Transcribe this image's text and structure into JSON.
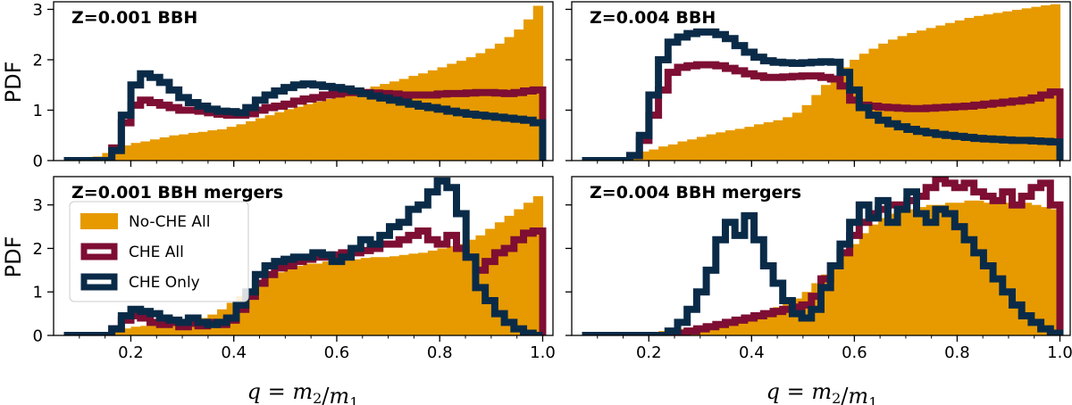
{
  "figure": {
    "xlabel_parts": [
      {
        "t": "q",
        "style": "math"
      },
      {
        "t": " = ",
        "style": "up"
      },
      {
        "t": "m",
        "style": "math"
      },
      {
        "t": "2",
        "style": "sub"
      },
      {
        "t": "/",
        "style": "up"
      },
      {
        "t": "m",
        "style": "math"
      },
      {
        "t": "1",
        "style": "sub"
      }
    ],
    "ylabel": "PDF",
    "colors": {
      "nocheall": "#E69A00",
      "cheall": "#7E0E33",
      "cheonly": "#0A2B48"
    },
    "legend": [
      {
        "key": "nocheall",
        "label": "No-CHE All",
        "kind": "fill"
      },
      {
        "key": "cheall",
        "label": "CHE All",
        "kind": "step"
      },
      {
        "key": "cheonly",
        "label": "CHE Only",
        "kind": "step"
      }
    ]
  },
  "chart_data": [
    {
      "type": "histogram",
      "title": "Z=0.001 BBH",
      "bins": [
        0.07,
        1.0,
        50
      ],
      "xlim": [
        0.05,
        1.02
      ],
      "ylim": [
        0,
        3.15
      ],
      "xticks": [
        "0.2",
        "0.4",
        "0.6",
        "0.8",
        "1.0"
      ],
      "xtick_values": [
        0.2,
        0.4,
        0.6,
        0.8,
        1.0
      ],
      "yticks": [
        "0",
        "1",
        "2",
        "3"
      ],
      "ytick_values": [
        0,
        1,
        2,
        3
      ],
      "series": [
        {
          "key": "nocheall",
          "name": "No-CHE All",
          "style": "fill",
          "values": [
            0.02,
            0.03,
            0.05,
            0.08,
            0.15,
            0.25,
            0.3,
            0.35,
            0.38,
            0.42,
            0.46,
            0.5,
            0.52,
            0.55,
            0.57,
            0.6,
            0.62,
            0.67,
            0.72,
            0.78,
            0.84,
            0.9,
            0.96,
            1.02,
            1.07,
            1.12,
            1.17,
            1.22,
            1.27,
            1.32,
            1.37,
            1.42,
            1.47,
            1.52,
            1.57,
            1.62,
            1.68,
            1.73,
            1.79,
            1.85,
            1.92,
            1.98,
            2.05,
            2.13,
            2.22,
            2.32,
            2.45,
            2.6,
            2.8,
            3.07
          ]
        },
        {
          "key": "cheall",
          "name": "CHE All",
          "style": "step",
          "values": [
            0.0,
            0.0,
            0.0,
            0.0,
            0.0,
            0.25,
            0.75,
            1.1,
            1.2,
            1.15,
            1.1,
            1.05,
            1.0,
            1.0,
            0.98,
            0.95,
            0.92,
            0.9,
            0.9,
            0.93,
            1.0,
            1.05,
            1.08,
            1.12,
            1.18,
            1.22,
            1.25,
            1.3,
            1.32,
            1.35,
            1.35,
            1.35,
            1.34,
            1.33,
            1.32,
            1.3,
            1.3,
            1.3,
            1.3,
            1.32,
            1.33,
            1.33,
            1.34,
            1.35,
            1.35,
            1.34,
            1.33,
            1.35,
            1.38,
            1.4
          ]
        },
        {
          "key": "cheonly",
          "name": "CHE Only",
          "style": "step",
          "values": [
            0.0,
            0.0,
            0.0,
            0.0,
            0.0,
            0.2,
            0.9,
            1.5,
            1.72,
            1.65,
            1.55,
            1.4,
            1.25,
            1.15,
            1.08,
            1.02,
            0.98,
            0.97,
            0.95,
            1.05,
            1.2,
            1.3,
            1.38,
            1.45,
            1.5,
            1.52,
            1.5,
            1.47,
            1.45,
            1.42,
            1.38,
            1.33,
            1.28,
            1.24,
            1.2,
            1.16,
            1.12,
            1.08,
            1.05,
            1.02,
            0.98,
            0.95,
            0.92,
            0.9,
            0.88,
            0.86,
            0.84,
            0.82,
            0.8,
            0.75
          ]
        }
      ]
    },
    {
      "type": "histogram",
      "title": "Z=0.004 BBH",
      "bins": [
        0.07,
        1.0,
        50
      ],
      "xlim": [
        0.05,
        1.02
      ],
      "ylim": [
        0,
        3.15
      ],
      "xticks": [
        "0.2",
        "0.4",
        "0.6",
        "0.8",
        "1.0"
      ],
      "xtick_values": [
        0.2,
        0.4,
        0.6,
        0.8,
        1.0
      ],
      "yticks": [
        "0",
        "1",
        "2",
        "3"
      ],
      "ytick_values": [
        0,
        1,
        2,
        3
      ],
      "series": [
        {
          "key": "nocheall",
          "name": "No-CHE All",
          "style": "fill",
          "values": [
            0.0,
            0.0,
            0.0,
            0.03,
            0.07,
            0.12,
            0.18,
            0.22,
            0.28,
            0.32,
            0.38,
            0.42,
            0.47,
            0.52,
            0.56,
            0.6,
            0.63,
            0.67,
            0.72,
            0.76,
            0.8,
            0.86,
            0.95,
            1.1,
            1.3,
            1.5,
            1.68,
            1.85,
            2.0,
            2.12,
            2.22,
            2.32,
            2.4,
            2.47,
            2.53,
            2.58,
            2.63,
            2.68,
            2.73,
            2.78,
            2.83,
            2.87,
            2.9,
            2.93,
            2.96,
            2.99,
            3.02,
            3.05,
            3.08,
            3.1
          ]
        },
        {
          "key": "cheall",
          "name": "CHE All",
          "style": "step",
          "values": [
            0.0,
            0.0,
            0.0,
            0.0,
            0.0,
            0.1,
            0.4,
            0.9,
            1.4,
            1.75,
            1.85,
            1.88,
            1.9,
            1.9,
            1.88,
            1.83,
            1.78,
            1.72,
            1.68,
            1.65,
            1.65,
            1.66,
            1.67,
            1.68,
            1.68,
            1.65,
            1.62,
            1.48,
            1.2,
            1.1,
            1.08,
            1.06,
            1.05,
            1.04,
            1.03,
            1.03,
            1.04,
            1.05,
            1.06,
            1.07,
            1.08,
            1.1,
            1.12,
            1.14,
            1.16,
            1.18,
            1.2,
            1.24,
            1.3,
            1.36
          ]
        },
        {
          "key": "cheonly",
          "name": "CHE Only",
          "style": "step",
          "values": [
            0.0,
            0.0,
            0.0,
            0.0,
            0.0,
            0.1,
            0.5,
            1.3,
            2.0,
            2.35,
            2.45,
            2.52,
            2.55,
            2.55,
            2.5,
            2.42,
            2.28,
            2.15,
            2.05,
            1.98,
            1.95,
            1.94,
            1.93,
            1.94,
            1.95,
            1.96,
            1.95,
            1.75,
            1.4,
            1.05,
            0.9,
            0.8,
            0.73,
            0.67,
            0.62,
            0.58,
            0.55,
            0.52,
            0.5,
            0.48,
            0.46,
            0.44,
            0.43,
            0.42,
            0.41,
            0.4,
            0.4,
            0.39,
            0.38,
            0.37
          ]
        }
      ]
    },
    {
      "type": "histogram",
      "title": "Z=0.001 BBH mergers",
      "bins": [
        0.07,
        1.0,
        50
      ],
      "xlim": [
        0.05,
        1.02
      ],
      "ylim": [
        0,
        3.65
      ],
      "xticks": [
        "0.2",
        "0.4",
        "0.6",
        "0.8",
        "1.0"
      ],
      "xtick_values": [
        0.2,
        0.4,
        0.6,
        0.8,
        1.0
      ],
      "yticks": [
        "0",
        "1",
        "2",
        "3"
      ],
      "ytick_values": [
        0,
        1,
        2,
        3
      ],
      "series": [
        {
          "key": "nocheall",
          "name": "No-CHE All",
          "style": "fill",
          "values": [
            0.0,
            0.0,
            0.02,
            0.05,
            0.08,
            0.12,
            0.16,
            0.2,
            0.22,
            0.25,
            0.28,
            0.3,
            0.32,
            0.35,
            0.4,
            0.48,
            0.6,
            0.75,
            0.9,
            1.05,
            1.2,
            1.35,
            1.45,
            1.55,
            1.6,
            1.65,
            1.65,
            1.7,
            1.7,
            1.72,
            1.75,
            1.78,
            1.8,
            1.8,
            1.82,
            1.85,
            1.88,
            1.9,
            1.95,
            2.0,
            2.05,
            2.1,
            2.2,
            2.3,
            2.45,
            2.6,
            2.75,
            2.9,
            3.05,
            3.2
          ]
        },
        {
          "key": "cheall",
          "name": "CHE All",
          "style": "step",
          "values": [
            0.0,
            0.0,
            0.0,
            0.0,
            0.0,
            0.15,
            0.35,
            0.45,
            0.4,
            0.3,
            0.25,
            0.3,
            0.2,
            0.28,
            0.22,
            0.3,
            0.25,
            0.35,
            0.6,
            0.9,
            1.2,
            1.4,
            1.55,
            1.6,
            1.7,
            1.75,
            1.8,
            1.8,
            1.85,
            1.9,
            1.9,
            1.95,
            2.0,
            2.1,
            2.1,
            2.2,
            2.3,
            2.4,
            2.2,
            2.1,
            2.3,
            2.0,
            1.8,
            1.5,
            1.7,
            1.9,
            2.0,
            2.2,
            2.35,
            2.4
          ]
        },
        {
          "key": "cheonly",
          "name": "CHE Only",
          "style": "step",
          "values": [
            0.0,
            0.0,
            0.0,
            0.0,
            0.0,
            0.15,
            0.45,
            0.6,
            0.55,
            0.5,
            0.4,
            0.35,
            0.3,
            0.4,
            0.3,
            0.25,
            0.3,
            0.4,
            0.7,
            1.0,
            1.4,
            1.6,
            1.7,
            1.75,
            1.8,
            1.8,
            1.9,
            1.85,
            1.7,
            1.8,
            2.0,
            2.2,
            2.1,
            2.3,
            2.5,
            2.6,
            2.9,
            3.0,
            3.3,
            3.55,
            3.4,
            2.8,
            1.8,
            1.1,
            0.8,
            0.5,
            0.3,
            0.15,
            0.05,
            0.0
          ]
        }
      ]
    },
    {
      "type": "histogram",
      "title": "Z=0.004 BBH mergers",
      "bins": [
        0.07,
        1.0,
        50
      ],
      "xlim": [
        0.05,
        1.02
      ],
      "ylim": [
        0,
        3.65
      ],
      "xticks": [
        "0.2",
        "0.4",
        "0.6",
        "0.8",
        "1.0"
      ],
      "xtick_values": [
        0.2,
        0.4,
        0.6,
        0.8,
        1.0
      ],
      "yticks": [
        "0",
        "1",
        "2",
        "3"
      ],
      "ytick_values": [
        0,
        1,
        2,
        3
      ],
      "series": [
        {
          "key": "nocheall",
          "name": "No-CHE All",
          "style": "fill",
          "values": [
            0.0,
            0.0,
            0.0,
            0.0,
            0.02,
            0.04,
            0.06,
            0.08,
            0.1,
            0.12,
            0.15,
            0.18,
            0.2,
            0.22,
            0.25,
            0.3,
            0.35,
            0.4,
            0.45,
            0.55,
            0.65,
            0.75,
            0.85,
            1.0,
            1.2,
            1.4,
            1.6,
            1.85,
            2.1,
            2.35,
            2.55,
            2.7,
            2.8,
            2.85,
            2.9,
            2.95,
            3.0,
            3.0,
            3.05,
            3.05,
            3.1,
            3.1,
            3.05,
            3.1,
            3.05,
            3.0,
            3.05,
            3.0,
            2.95,
            2.9
          ]
        },
        {
          "key": "cheall",
          "name": "CHE All",
          "style": "step",
          "values": [
            0.0,
            0.0,
            0.0,
            0.0,
            0.0,
            0.0,
            0.0,
            0.0,
            0.0,
            0.0,
            0.05,
            0.1,
            0.15,
            0.2,
            0.25,
            0.3,
            0.35,
            0.4,
            0.45,
            0.5,
            0.55,
            0.6,
            0.65,
            0.7,
            0.9,
            1.3,
            1.6,
            1.9,
            2.3,
            2.6,
            2.8,
            2.9,
            3.0,
            3.0,
            3.1,
            3.2,
            3.4,
            3.6,
            3.5,
            3.4,
            3.5,
            3.3,
            3.2,
            3.1,
            3.3,
            3.0,
            3.2,
            3.4,
            3.5,
            3.0
          ]
        },
        {
          "key": "cheonly",
          "name": "CHE Only",
          "style": "step",
          "values": [
            0.0,
            0.0,
            0.0,
            0.0,
            0.0,
            0.0,
            0.0,
            0.0,
            0.0,
            0.1,
            0.3,
            0.6,
            1.0,
            1.5,
            2.2,
            2.6,
            2.3,
            2.75,
            2.2,
            1.6,
            1.2,
            0.8,
            0.5,
            0.4,
            0.6,
            1.1,
            1.6,
            2.1,
            2.6,
            3.0,
            2.7,
            3.1,
            2.6,
            2.9,
            3.3,
            2.8,
            2.6,
            2.9,
            2.8,
            2.5,
            2.2,
            1.9,
            1.6,
            1.3,
            1.0,
            0.7,
            0.45,
            0.3,
            0.15,
            0.05
          ]
        }
      ]
    }
  ]
}
